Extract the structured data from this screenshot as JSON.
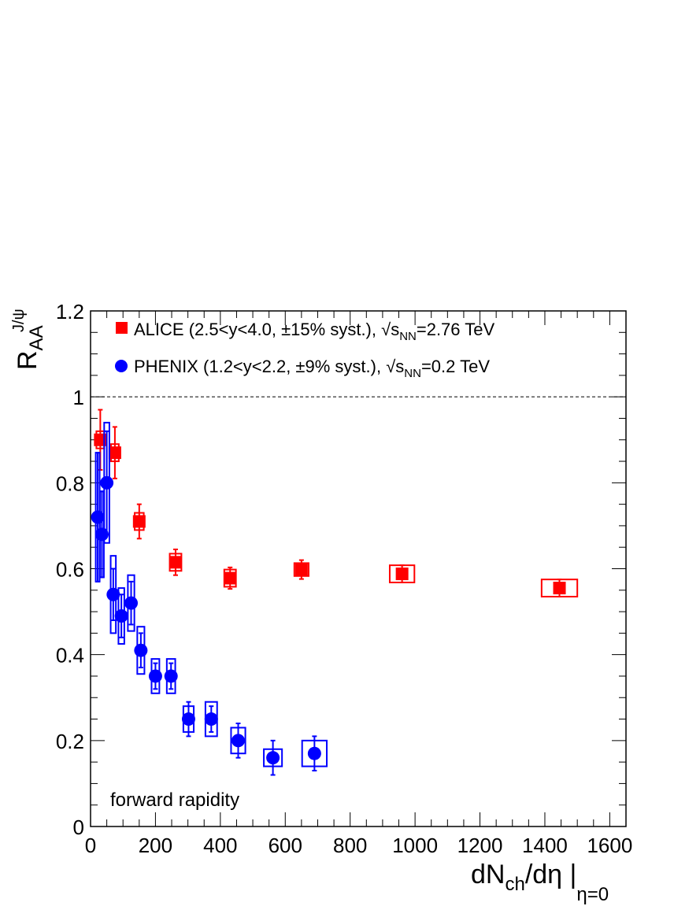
{
  "chart_data": {
    "type": "scatter",
    "xlabel": {
      "main": "dN",
      "sub1": "ch",
      "mid": "/dη |",
      "sub2": "η=0"
    },
    "ylabel": {
      "main": "R",
      "sub": "AA",
      "sup": "J/ψ"
    },
    "xlim": [
      0,
      1650
    ],
    "ylim": [
      0,
      1.2
    ],
    "x_ticks": [
      0,
      200,
      400,
      600,
      800,
      1000,
      1200,
      1400,
      1600
    ],
    "y_ticks": [
      0,
      0.2,
      0.4,
      0.6,
      0.8,
      1,
      1.2
    ],
    "x_tick_labels": [
      "0",
      "200",
      "400",
      "600",
      "800",
      "1000",
      "1200",
      "1400",
      "1600"
    ],
    "y_tick_labels": [
      "0",
      "0.2",
      "0.4",
      "0.6",
      "0.8",
      "1",
      "1.2"
    ],
    "reference_line": {
      "y": 1,
      "style": "dashed"
    },
    "annotation": "forward rapidity",
    "grid": false,
    "legend_position": "top-left",
    "series": [
      {
        "name": "ALICE (2.5<y<4.0, ±15% syst.), √s",
        "legend": {
          "prefix": "ALICE (2.5<y<4.0, ±15% syst.), ",
          "sqrt_s": "s",
          "sub": "NN",
          "suffix": "=2.76 TeV"
        },
        "color": "#ff0000",
        "marker": "square",
        "points": [
          {
            "x": 30,
            "y": 0.9,
            "stat": 0.07,
            "sys": 0.02,
            "sys_dx": 12
          },
          {
            "x": 75,
            "y": 0.87,
            "stat": 0.06,
            "sys": 0.02,
            "sys_dx": 12
          },
          {
            "x": 150,
            "y": 0.71,
            "stat": 0.04,
            "sys": 0.02,
            "sys_dx": 14
          },
          {
            "x": 262,
            "y": 0.615,
            "stat": 0.03,
            "sys": 0.02,
            "sys_dx": 18
          },
          {
            "x": 430,
            "y": 0.578,
            "stat": 0.025,
            "sys": 0.02,
            "sys_dx": 18
          },
          {
            "x": 650,
            "y": 0.598,
            "stat": 0.022,
            "sys": 0.015,
            "sys_dx": 22
          },
          {
            "x": 960,
            "y": 0.588,
            "stat": 0.02,
            "sys": 0.02,
            "sys_dx": 38
          },
          {
            "x": 1445,
            "y": 0.555,
            "stat": 0.02,
            "sys": 0.02,
            "sys_dx": 55
          }
        ]
      },
      {
        "name": "PHENIX (1.2<y<2.2, ±9% syst.), √s",
        "legend": {
          "prefix": "PHENIX (1.2<y<2.2, ±9% syst.), ",
          "sqrt_s": "s",
          "sub": "NN",
          "suffix": "=0.2 TeV"
        },
        "color": "#0000ff",
        "marker": "circle",
        "points": [
          {
            "x": 22,
            "y": 0.72,
            "stat": 0.15,
            "sys": 0.15,
            "sys_dx": 6
          },
          {
            "x": 35,
            "y": 0.68,
            "stat": 0.1,
            "sys": 0.1,
            "sys_dx": 6
          },
          {
            "x": 50,
            "y": 0.8,
            "stat": 0.12,
            "sys": 0.14,
            "sys_dx": 8
          },
          {
            "x": 70,
            "y": 0.54,
            "stat": 0.06,
            "sys": 0.09,
            "sys_dx": 8
          },
          {
            "x": 95,
            "y": 0.49,
            "stat": 0.05,
            "sys": 0.065,
            "sys_dx": 9
          },
          {
            "x": 125,
            "y": 0.52,
            "stat": 0.05,
            "sys": 0.065,
            "sys_dx": 10
          },
          {
            "x": 155,
            "y": 0.41,
            "stat": 0.04,
            "sys": 0.055,
            "sys_dx": 11
          },
          {
            "x": 200,
            "y": 0.35,
            "stat": 0.03,
            "sys": 0.04,
            "sys_dx": 12
          },
          {
            "x": 248,
            "y": 0.35,
            "stat": 0.03,
            "sys": 0.04,
            "sys_dx": 13
          },
          {
            "x": 302,
            "y": 0.25,
            "stat": 0.04,
            "sys": 0.03,
            "sys_dx": 16
          },
          {
            "x": 372,
            "y": 0.25,
            "stat": 0.03,
            "sys": 0.04,
            "sys_dx": 18
          },
          {
            "x": 455,
            "y": 0.2,
            "stat": 0.04,
            "sys": 0.03,
            "sys_dx": 22
          },
          {
            "x": 562,
            "y": 0.16,
            "stat": 0.04,
            "sys": 0.02,
            "sys_dx": 28
          },
          {
            "x": 690,
            "y": 0.17,
            "stat": 0.04,
            "sys": 0.03,
            "sys_dx": 38
          }
        ]
      }
    ]
  }
}
